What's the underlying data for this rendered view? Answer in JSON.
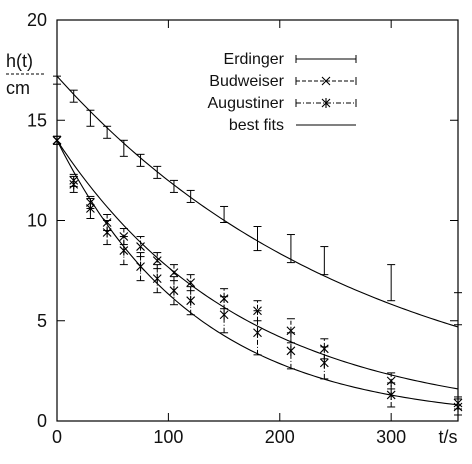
{
  "chart_data": {
    "type": "scatter",
    "ylabel_top": "h(t)",
    "ylabel_bottom": "cm",
    "xlabel": "t/s",
    "xlim": [
      0,
      360
    ],
    "ylim": [
      0,
      20
    ],
    "x_ticks": [
      "0",
      "100",
      "200",
      "300"
    ],
    "x_tick_values": [
      0,
      100,
      200,
      300
    ],
    "y_ticks": [
      "0",
      "5",
      "10",
      "15",
      "20"
    ],
    "y_tick_values": [
      0,
      5,
      10,
      15,
      20
    ],
    "grid": false,
    "legend_position": "top-right",
    "series": [
      {
        "name": "Erdinger",
        "marker": "errorbar",
        "line_style": "solid",
        "x": [
          0,
          15,
          30,
          45,
          60,
          75,
          90,
          105,
          120,
          150,
          180,
          210,
          240,
          300,
          360
        ],
        "y": [
          17.0,
          16.2,
          15.1,
          14.4,
          13.6,
          13.0,
          12.4,
          11.7,
          11.2,
          10.3,
          9.1,
          8.6,
          8.0,
          6.9,
          5.6
        ],
        "err": [
          0.2,
          0.3,
          0.4,
          0.3,
          0.4,
          0.3,
          0.3,
          0.3,
          0.3,
          0.4,
          0.6,
          0.7,
          0.7,
          0.9,
          0.8
        ]
      },
      {
        "name": "Budweiser",
        "marker": "x",
        "line_style": "dashed",
        "x": [
          0,
          15,
          30,
          45,
          60,
          75,
          90,
          105,
          120,
          150,
          180,
          210,
          240,
          300,
          360
        ],
        "y": [
          14.0,
          12.0,
          10.9,
          9.9,
          9.2,
          8.7,
          8.0,
          7.4,
          6.9,
          6.1,
          5.5,
          4.5,
          3.6,
          2.0,
          0.9
        ],
        "err": [
          0.2,
          0.3,
          0.3,
          0.4,
          0.4,
          0.5,
          0.4,
          0.4,
          0.4,
          0.5,
          0.5,
          0.6,
          0.5,
          0.4,
          0.3
        ]
      },
      {
        "name": "Augustiner",
        "marker": "star",
        "line_style": "dashdot",
        "x": [
          0,
          15,
          30,
          45,
          60,
          75,
          90,
          105,
          120,
          150,
          180,
          210,
          240,
          300,
          360
        ],
        "y": [
          14.0,
          11.8,
          10.6,
          9.4,
          8.5,
          7.7,
          7.1,
          6.5,
          6.0,
          5.3,
          4.4,
          3.5,
          2.9,
          1.3,
          0.7
        ],
        "err": [
          0.2,
          0.4,
          0.5,
          0.6,
          0.7,
          0.7,
          0.7,
          0.7,
          0.7,
          0.9,
          1.1,
          0.9,
          0.8,
          0.6,
          0.4
        ]
      },
      {
        "name": "best fits",
        "marker": "none",
        "line_style": "solid",
        "curves": [
          {
            "h0": 17.2,
            "tau": 277
          },
          {
            "h0": 14.0,
            "tau": 166
          },
          {
            "h0": 14.0,
            "tau": 126
          }
        ]
      }
    ]
  }
}
